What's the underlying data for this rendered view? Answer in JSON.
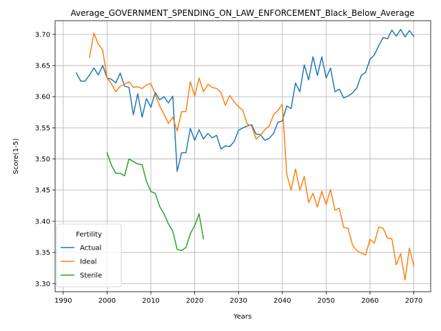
{
  "chart_data": {
    "type": "line",
    "title": "Average_GOVERNMENT_SPENDING_ON_LAW_ENFORCEMENT_Black_Below_Average",
    "xlabel": "Years",
    "ylabel": "Score(1-5)",
    "xlim": [
      1988.15,
      2073.85
    ],
    "ylim": [
      3.287,
      3.722
    ],
    "xticks": [
      1990,
      2000,
      2010,
      2020,
      2030,
      2040,
      2050,
      2060,
      2070
    ],
    "yticks": [
      3.3,
      3.35,
      3.4,
      3.45,
      3.5,
      3.55,
      3.6,
      3.65,
      3.7
    ],
    "ytick_labels": [
      "3.30",
      "3.35",
      "3.40",
      "3.45",
      "3.50",
      "3.55",
      "3.60",
      "3.65",
      "3.70"
    ],
    "grid": true,
    "legend": {
      "title": "Fertility",
      "position": "lower-left"
    },
    "series": [
      {
        "name": "Actual",
        "color": "#1f77b4",
        "x": [
          1993,
          1994,
          1995,
          1996,
          1997,
          1998,
          1999,
          2000,
          2001,
          2002,
          2003,
          2004,
          2005,
          2006,
          2007,
          2008,
          2009,
          2010,
          2011,
          2012,
          2013,
          2014,
          2015,
          2016,
          2017,
          2018,
          2019,
          2020,
          2021,
          2022,
          2023,
          2024,
          2025,
          2026,
          2027,
          2028,
          2029,
          2030,
          2031,
          2032,
          2033,
          2034,
          2035,
          2036,
          2037,
          2038,
          2039,
          2040,
          2041,
          2042,
          2043,
          2044,
          2045,
          2046,
          2047,
          2048,
          2049,
          2050,
          2051,
          2052,
          2053,
          2054,
          2055,
          2056,
          2057,
          2058,
          2059,
          2060,
          2061,
          2062,
          2063,
          2064,
          2065,
          2066,
          2067,
          2068,
          2069,
          2070
        ],
        "values": [
          3.638,
          3.625,
          3.625,
          3.635,
          3.646,
          3.635,
          3.65,
          3.63,
          3.628,
          3.622,
          3.638,
          3.617,
          3.615,
          3.571,
          3.605,
          3.567,
          3.597,
          3.583,
          3.607,
          3.595,
          3.6,
          3.59,
          3.601,
          3.48,
          3.51,
          3.51,
          3.549,
          3.53,
          3.547,
          3.532,
          3.541,
          3.534,
          3.538,
          3.516,
          3.521,
          3.52,
          3.528,
          3.546,
          3.55,
          3.553,
          3.555,
          3.54,
          3.539,
          3.53,
          3.533,
          3.541,
          3.559,
          3.561,
          3.585,
          3.581,
          3.622,
          3.608,
          3.651,
          3.627,
          3.664,
          3.634,
          3.664,
          3.63,
          3.646,
          3.608,
          3.612,
          3.598,
          3.601,
          3.606,
          3.614,
          3.634,
          3.639,
          3.66,
          3.667,
          3.682,
          3.695,
          3.693,
          3.707,
          3.697,
          3.708,
          3.696,
          3.706,
          3.697
        ]
      },
      {
        "name": "Ideal",
        "color": "#ff7f0e",
        "x": [
          1996,
          1997,
          1998,
          1999,
          2000,
          2001,
          2002,
          2003,
          2004,
          2005,
          2006,
          2007,
          2008,
          2009,
          2010,
          2011,
          2012,
          2013,
          2014,
          2015,
          2016,
          2017,
          2018,
          2019,
          2020,
          2021,
          2022,
          2023,
          2024,
          2025,
          2026,
          2027,
          2028,
          2029,
          2030,
          2031,
          2032,
          2033,
          2034,
          2035,
          2036,
          2037,
          2038,
          2039,
          2040,
          2041,
          2042,
          2043,
          2044,
          2045,
          2046,
          2047,
          2048,
          2049,
          2050,
          2051,
          2052,
          2053,
          2054,
          2055,
          2056,
          2057,
          2058,
          2059,
          2060,
          2061,
          2062,
          2063,
          2064,
          2065,
          2066,
          2067,
          2068,
          2069,
          2070
        ],
        "values": [
          3.663,
          3.702,
          3.684,
          3.675,
          3.63,
          3.621,
          3.608,
          3.617,
          3.62,
          3.624,
          3.615,
          3.616,
          3.613,
          3.619,
          3.621,
          3.604,
          3.585,
          3.572,
          3.557,
          3.567,
          3.545,
          3.576,
          3.576,
          3.624,
          3.601,
          3.63,
          3.608,
          3.62,
          3.615,
          3.613,
          3.607,
          3.586,
          3.602,
          3.592,
          3.584,
          3.578,
          3.556,
          3.553,
          3.532,
          3.538,
          3.547,
          3.553,
          3.571,
          3.578,
          3.588,
          3.476,
          3.45,
          3.484,
          3.45,
          3.472,
          3.43,
          3.445,
          3.423,
          3.448,
          3.427,
          3.451,
          3.418,
          3.421,
          3.39,
          3.389,
          3.362,
          3.353,
          3.349,
          3.346,
          3.371,
          3.365,
          3.391,
          3.389,
          3.373,
          3.372,
          3.33,
          3.348,
          3.306,
          3.357,
          3.328
        ]
      },
      {
        "name": "Sterile",
        "color": "#2ca02c",
        "x": [
          2000,
          2001,
          2002,
          2003,
          2004,
          2005,
          2006,
          2007,
          2008,
          2009,
          2010,
          2011,
          2012,
          2013,
          2014,
          2015,
          2016,
          2017,
          2018,
          2019,
          2020,
          2021,
          2022
        ],
        "values": [
          3.51,
          3.49,
          3.477,
          3.477,
          3.473,
          3.5,
          3.496,
          3.492,
          3.491,
          3.464,
          3.448,
          3.445,
          3.424,
          3.412,
          3.396,
          3.384,
          3.355,
          3.353,
          3.358,
          3.38,
          3.393,
          3.412,
          3.372
        ]
      }
    ]
  }
}
